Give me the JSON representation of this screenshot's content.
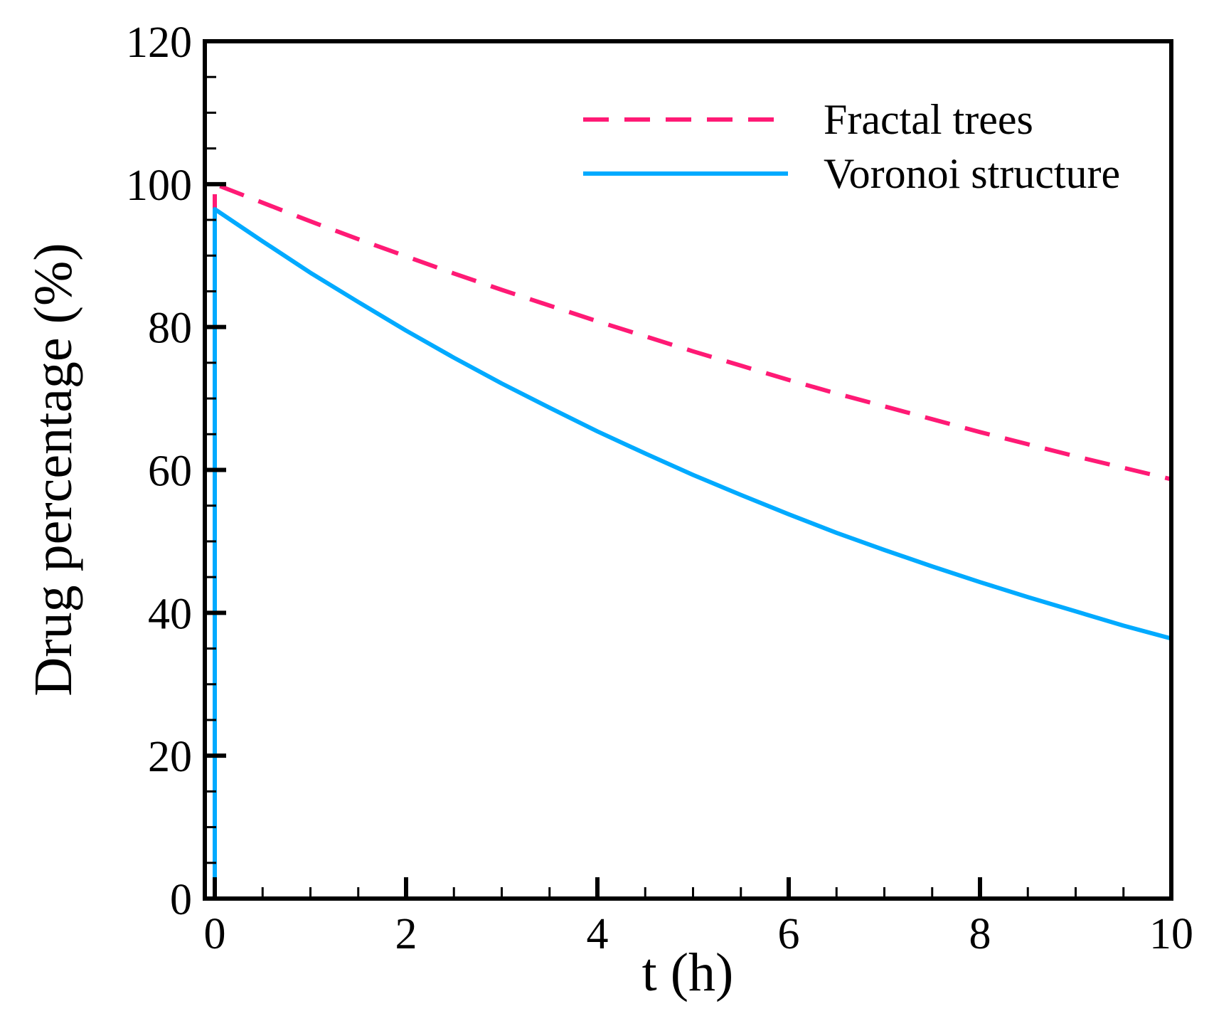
{
  "chart_data": {
    "type": "line",
    "xlabel": "t (h)",
    "ylabel": "Drug percentage (%)",
    "xlim": [
      0,
      10
    ],
    "ylim": [
      0,
      120
    ],
    "x_ticks": [
      0,
      2,
      4,
      6,
      8,
      10
    ],
    "x_tick_labels": [
      "0",
      "2",
      "4",
      "6",
      "8",
      "10"
    ],
    "y_ticks": [
      0,
      20,
      40,
      60,
      80,
      100,
      120
    ],
    "y_tick_labels": [
      "0",
      "20",
      "40",
      "60",
      "80",
      "100",
      "120"
    ],
    "grid": false,
    "legend_position": "top-right",
    "series": [
      {
        "name": "Fractal trees",
        "style": "dashed",
        "color": "#ff1a75",
        "x": [
          0.0,
          0.0,
          0.5,
          1,
          1.5,
          2,
          2.5,
          3,
          3.5,
          4,
          4.5,
          5,
          5.5,
          6,
          6.5,
          7,
          7.5,
          8,
          8.5,
          9,
          9.5,
          10
        ],
        "y": [
          95.0,
          100.0,
          97.4,
          94.8,
          92.3,
          89.9,
          87.5,
          85.2,
          83.0,
          80.8,
          78.7,
          76.6,
          74.6,
          72.6,
          70.7,
          68.9,
          67.1,
          65.3,
          63.6,
          61.9,
          60.3,
          58.7
        ]
      },
      {
        "name": "Voronoi structure",
        "style": "solid",
        "color": "#00aaff",
        "x": [
          0.0,
          0.0,
          0.5,
          1,
          1.5,
          2,
          2.5,
          3,
          3.5,
          4,
          4.5,
          5,
          5.5,
          6,
          6.5,
          7,
          7.5,
          8,
          8.5,
          9,
          9.5,
          10
        ],
        "y": [
          2.0,
          96.5,
          92.0,
          87.6,
          83.5,
          79.5,
          75.7,
          72.1,
          68.7,
          65.4,
          62.3,
          59.3,
          56.5,
          53.8,
          51.2,
          48.8,
          46.5,
          44.3,
          42.2,
          40.2,
          38.2,
          36.4
        ]
      }
    ]
  }
}
